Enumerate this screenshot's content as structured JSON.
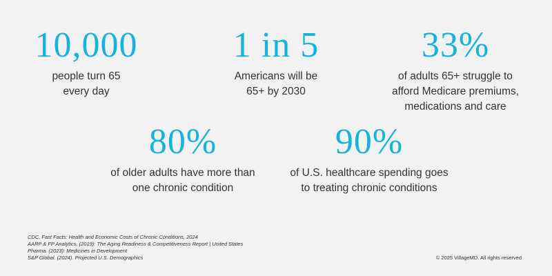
{
  "colors": {
    "background": "#f2f2f2",
    "accent": "#17b3de",
    "text": "#333333"
  },
  "stats": [
    {
      "value": "10,000",
      "label_lines": [
        "people turn 65",
        "every day"
      ]
    },
    {
      "value": "1 in 5",
      "label_lines": [
        "Americans will be",
        "65+ by 2030"
      ]
    },
    {
      "value": "33%",
      "label_lines": [
        "of adults 65+ struggle to",
        "afford Medicare premiums,",
        "medications and care"
      ]
    },
    {
      "value": "80%",
      "label_lines": [
        "of older adults have more than",
        "one chronic condition"
      ]
    },
    {
      "value": "90%",
      "label_lines": [
        "of U.S. healthcare spending goes",
        "to treating chronic conditions"
      ]
    }
  ],
  "sources": [
    "CDC, Fast Facts: Health and Economic Costs of Chronic Conditions, 2024",
    "AARP & FP Analytics, (2019): The Aging Readiness & Competitiveness Report | United States",
    "Pharma. (2023): Medicines in Development",
    "S&P Global. (2024). Projected U.S. Demographics"
  ],
  "copyright": "© 2025 VillageMD. All rights reserved"
}
